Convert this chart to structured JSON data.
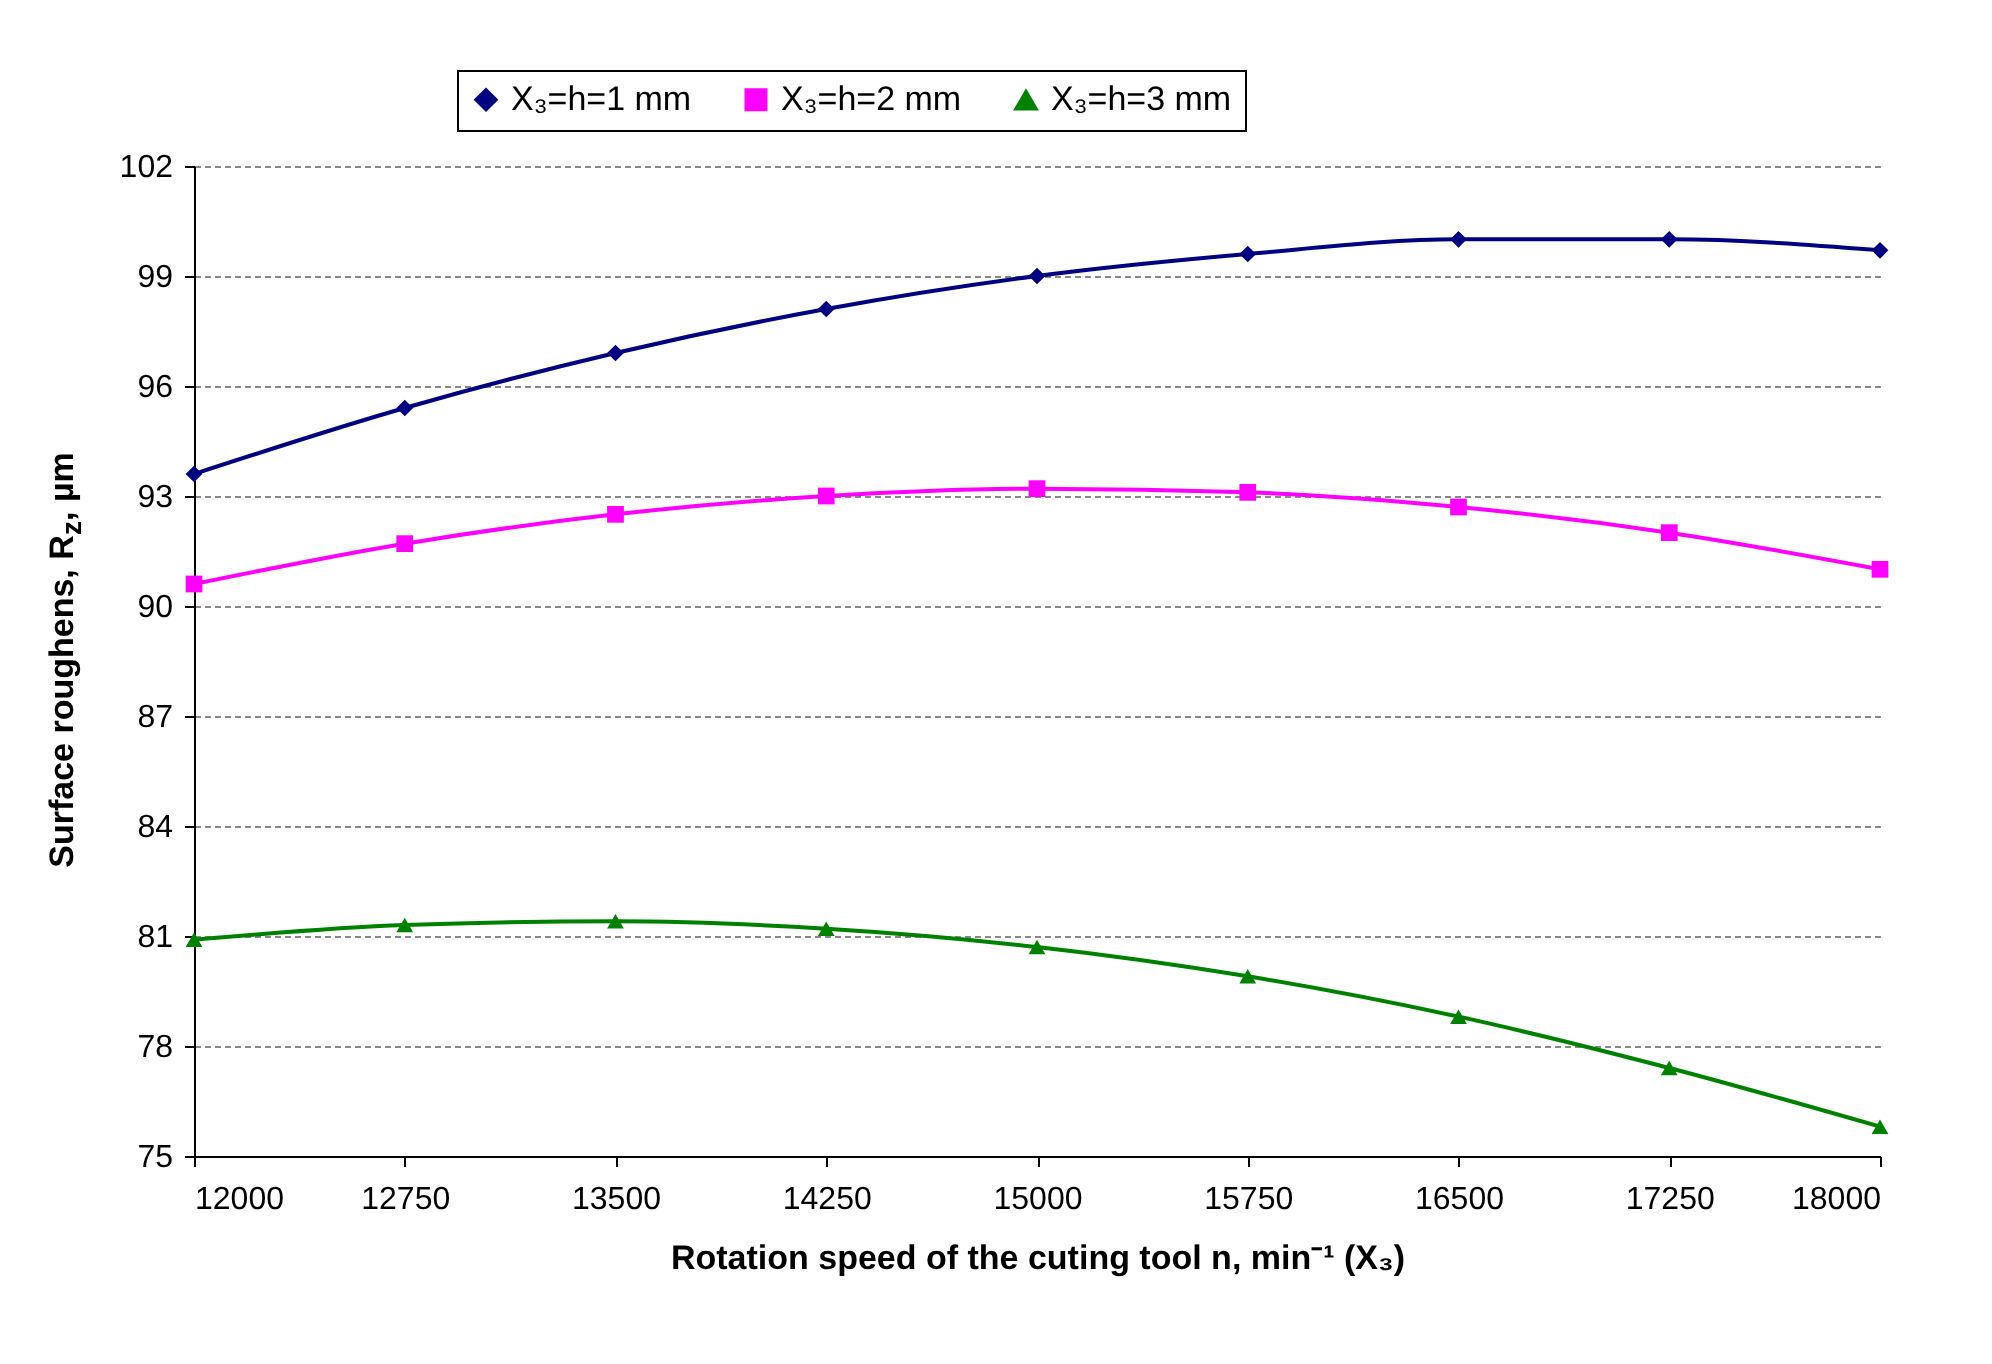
{
  "chart_data": {
    "type": "line",
    "xlabel": "Rotation speed of the cuting tool n, min⁻¹ (X₃)",
    "ylabel": "Surface roughens, R$_{z}$, µm",
    "x": [
      12000,
      12750,
      13500,
      14250,
      15000,
      15750,
      16500,
      17250,
      18000
    ],
    "series": [
      {
        "name": "X₃=h=1 mm",
        "color": "#000080",
        "marker": "diamond",
        "values": [
          93.6,
          95.4,
          96.9,
          98.1,
          99.0,
          99.6,
          100.0,
          100.0,
          99.7
        ]
      },
      {
        "name": "X₃=h=2 mm",
        "color": "#ff00ff",
        "marker": "square",
        "values": [
          90.6,
          91.7,
          92.5,
          93.0,
          93.2,
          93.1,
          92.7,
          92.0,
          91.0
        ]
      },
      {
        "name": "X₃=h=3 mm",
        "color": "#008000",
        "marker": "triangle",
        "values": [
          80.9,
          81.3,
          81.4,
          81.2,
          80.7,
          79.9,
          78.8,
          77.4,
          75.8
        ]
      }
    ],
    "xlim": [
      12000,
      18000
    ],
    "xticks": [
      12000,
      12750,
      13500,
      14250,
      15000,
      15750,
      16500,
      17250,
      18000
    ],
    "ylim": [
      75,
      102
    ],
    "yticks": [
      75,
      78,
      81,
      84,
      87,
      90,
      93,
      96,
      99,
      102
    ],
    "grid": "y",
    "legend": "top",
    "line_style": "solid"
  }
}
